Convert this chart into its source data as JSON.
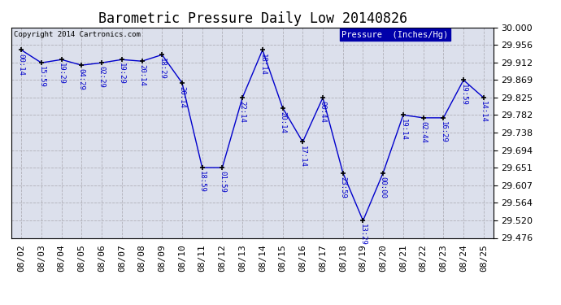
{
  "title": "Barometric Pressure Daily Low 20140826",
  "copyright": "Copyright 2014 Cartronics.com",
  "legend_label": "Pressure  (Inches/Hg)",
  "dates": [
    "08/02",
    "08/03",
    "08/04",
    "08/05",
    "08/06",
    "08/07",
    "08/08",
    "08/09",
    "08/10",
    "08/11",
    "08/12",
    "08/13",
    "08/14",
    "08/15",
    "08/16",
    "08/17",
    "08/18",
    "08/19",
    "08/20",
    "08/21",
    "08/22",
    "08/23",
    "08/24",
    "08/25"
  ],
  "values": [
    29.944,
    29.912,
    29.92,
    29.906,
    29.912,
    29.92,
    29.916,
    29.932,
    29.862,
    29.651,
    29.651,
    29.825,
    29.944,
    29.8,
    29.715,
    29.825,
    29.638,
    29.519,
    29.638,
    29.782,
    29.775,
    29.775,
    29.869,
    29.825
  ],
  "time_labels": [
    "00:14",
    "15:59",
    "19:29",
    "04:29",
    "02:29",
    "19:29",
    "20:14",
    "18:29",
    "20:14",
    "18:59",
    "01:59",
    "22:14",
    "18:14",
    "20:14",
    "17:14",
    "00:44",
    "23:59",
    "13:29",
    "00:00",
    "19:14",
    "02:44",
    "16:29",
    "19:59",
    "14:14"
  ],
  "ylim": [
    29.476,
    30.0
  ],
  "yticks": [
    29.476,
    29.52,
    29.564,
    29.607,
    29.651,
    29.694,
    29.738,
    29.782,
    29.825,
    29.869,
    29.912,
    29.956,
    30.0
  ],
  "line_color": "#0000cc",
  "marker_color": "#000000",
  "bg_color": "#ffffff",
  "plot_bg_color": "#dce0ec",
  "grid_color": "#b0b0b8",
  "title_fontsize": 12,
  "tick_fontsize": 8,
  "label_fontsize": 7,
  "copyright_color": "#000000",
  "legend_bg": "#0000aa",
  "legend_fg": "#ffffff"
}
